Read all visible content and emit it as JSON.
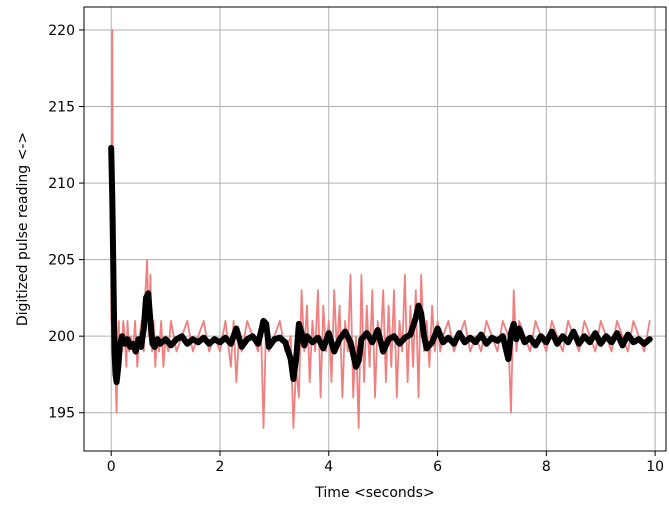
{
  "chart_data": {
    "type": "line",
    "title": "",
    "xlabel": "Time <seconds>",
    "ylabel": "Digitized pulse reading <->",
    "xlim": [
      -0.5,
      10.2
    ],
    "ylim": [
      192.5,
      221.5
    ],
    "xticks": [
      0,
      2,
      4,
      6,
      8,
      10
    ],
    "yticks": [
      195,
      200,
      205,
      210,
      215,
      220
    ],
    "xtick_labels": [
      "0",
      "2",
      "4",
      "6",
      "8",
      "10"
    ],
    "ytick_labels": [
      "195",
      "200",
      "205",
      "210",
      "215",
      "220"
    ],
    "grid": true,
    "legend": "none",
    "colors": {
      "raw": "#f08080",
      "smoothed": "#000000",
      "grid": "#b0b0b0",
      "axes": "#000000"
    },
    "series": [
      {
        "role": "raw",
        "x": [
          0.0,
          0.01,
          0.02,
          0.03,
          0.04,
          0.05,
          0.06,
          0.07,
          0.08,
          0.09,
          0.1,
          0.12,
          0.14,
          0.16,
          0.18,
          0.2,
          0.22,
          0.25,
          0.28,
          0.3,
          0.33,
          0.36,
          0.4,
          0.44,
          0.48,
          0.52,
          0.56,
          0.6,
          0.63,
          0.66,
          0.69,
          0.72,
          0.75,
          0.78,
          0.81,
          0.84,
          0.88,
          0.92,
          0.96,
          1.0,
          1.05,
          1.1,
          1.15,
          1.2,
          1.3,
          1.4,
          1.5,
          1.6,
          1.7,
          1.8,
          1.9,
          2.0,
          2.1,
          2.2,
          2.25,
          2.3,
          2.35,
          2.4,
          2.5,
          2.6,
          2.7,
          2.75,
          2.8,
          2.85,
          2.9,
          3.0,
          3.1,
          3.2,
          3.3,
          3.35,
          3.4,
          3.45,
          3.5,
          3.55,
          3.6,
          3.65,
          3.7,
          3.75,
          3.8,
          3.85,
          3.9,
          3.95,
          4.0,
          4.05,
          4.1,
          4.15,
          4.2,
          4.25,
          4.3,
          4.35,
          4.4,
          4.45,
          4.5,
          4.55,
          4.6,
          4.65,
          4.7,
          4.75,
          4.8,
          4.85,
          4.9,
          4.95,
          5.0,
          5.05,
          5.1,
          5.15,
          5.2,
          5.25,
          5.3,
          5.35,
          5.4,
          5.45,
          5.5,
          5.55,
          5.6,
          5.65,
          5.7,
          5.75,
          5.8,
          5.85,
          5.9,
          5.95,
          6.0,
          6.05,
          6.1,
          6.2,
          6.3,
          6.4,
          6.5,
          6.6,
          6.7,
          6.8,
          6.9,
          7.0,
          7.1,
          7.2,
          7.3,
          7.35,
          7.4,
          7.45,
          7.5,
          7.6,
          7.7,
          7.8,
          7.9,
          8.0,
          8.1,
          8.2,
          8.3,
          8.4,
          8.5,
          8.6,
          8.7,
          8.8,
          8.9,
          9.0,
          9.1,
          9.2,
          9.3,
          9.4,
          9.5,
          9.6,
          9.7,
          9.8,
          9.9
        ],
        "y": [
          201,
          212,
          220,
          210,
          203,
          199,
          197,
          200,
          198,
          196,
          195,
          199,
          201,
          198,
          200,
          199,
          201,
          200,
          198,
          201,
          199,
          200,
          199,
          201,
          198,
          200,
          201,
          199,
          203,
          205,
          200,
          204,
          199,
          201,
          198,
          200,
          199,
          201,
          198,
          200,
          199,
          201,
          200,
          199,
          200,
          201,
          199,
          200,
          201,
          199,
          200,
          199,
          201,
          198,
          201,
          197,
          200,
          199,
          201,
          200,
          199,
          201,
          194,
          201,
          199,
          200,
          201,
          199,
          200,
          194,
          198,
          196,
          203,
          199,
          202,
          197,
          201,
          199,
          203,
          196,
          202,
          199,
          201,
          197,
          203,
          199,
          202,
          196,
          201,
          199,
          204,
          196,
          200,
          194,
          204,
          197,
          202,
          198,
          203,
          196,
          201,
          199,
          203,
          197,
          202,
          198,
          203,
          196,
          201,
          199,
          204,
          197,
          202,
          198,
          203,
          196,
          204,
          199,
          201,
          198,
          202,
          199,
          201,
          199,
          200,
          201,
          199,
          200,
          201,
          199,
          200,
          199,
          201,
          200,
          199,
          201,
          200,
          195,
          203,
          199,
          201,
          200,
          199,
          201,
          200,
          199,
          201,
          200,
          199,
          201,
          200,
          199,
          201,
          200,
          199,
          201,
          200,
          199,
          201,
          200,
          199,
          201,
          200,
          199,
          201
        ]
      },
      {
        "role": "smoothed",
        "x": [
          0.0,
          0.02,
          0.04,
          0.06,
          0.08,
          0.1,
          0.13,
          0.16,
          0.2,
          0.25,
          0.3,
          0.35,
          0.4,
          0.45,
          0.5,
          0.55,
          0.6,
          0.64,
          0.68,
          0.72,
          0.76,
          0.8,
          0.85,
          0.9,
          1.0,
          1.1,
          1.2,
          1.3,
          1.4,
          1.5,
          1.6,
          1.7,
          1.8,
          1.9,
          2.0,
          2.1,
          2.2,
          2.3,
          2.4,
          2.5,
          2.6,
          2.7,
          2.8,
          2.85,
          2.9,
          3.0,
          3.1,
          3.2,
          3.3,
          3.35,
          3.4,
          3.45,
          3.5,
          3.55,
          3.6,
          3.7,
          3.8,
          3.9,
          4.0,
          4.1,
          4.2,
          4.3,
          4.4,
          4.5,
          4.55,
          4.6,
          4.7,
          4.8,
          4.9,
          5.0,
          5.1,
          5.2,
          5.3,
          5.4,
          5.5,
          5.6,
          5.65,
          5.7,
          5.75,
          5.8,
          5.9,
          6.0,
          6.1,
          6.2,
          6.3,
          6.4,
          6.5,
          6.6,
          6.7,
          6.8,
          6.9,
          7.0,
          7.1,
          7.2,
          7.3,
          7.35,
          7.4,
          7.45,
          7.5,
          7.6,
          7.7,
          7.8,
          7.9,
          8.0,
          8.1,
          8.2,
          8.3,
          8.4,
          8.5,
          8.6,
          8.7,
          8.8,
          8.9,
          9.0,
          9.1,
          9.2,
          9.3,
          9.4,
          9.5,
          9.6,
          9.7,
          9.8,
          9.9
        ],
        "y": [
          212.3,
          209.0,
          204.0,
          199.0,
          197.5,
          197.0,
          198.0,
          199.5,
          200.0,
          199.5,
          199.8,
          199.3,
          199.5,
          199.0,
          199.8,
          199.3,
          200.5,
          202.5,
          202.8,
          201.0,
          199.5,
          199.3,
          199.8,
          199.5,
          199.8,
          199.4,
          199.8,
          200.0,
          199.5,
          199.8,
          199.6,
          199.9,
          199.5,
          199.8,
          199.6,
          199.9,
          199.5,
          200.5,
          199.3,
          199.8,
          200.0,
          199.5,
          201.0,
          200.8,
          199.3,
          199.8,
          199.9,
          199.6,
          198.5,
          197.2,
          198.5,
          200.8,
          200.2,
          199.4,
          200.0,
          199.6,
          199.9,
          199.2,
          200.2,
          199.0,
          199.8,
          200.3,
          199.6,
          198.0,
          198.4,
          199.8,
          200.2,
          199.6,
          200.4,
          199.0,
          199.8,
          200.0,
          199.5,
          199.9,
          200.1,
          201.2,
          202.0,
          201.5,
          200.0,
          199.2,
          199.6,
          200.5,
          199.6,
          199.9,
          199.5,
          200.2,
          199.6,
          199.9,
          199.6,
          200.1,
          199.5,
          199.9,
          199.7,
          200.0,
          198.5,
          200.2,
          200.8,
          199.8,
          200.5,
          199.6,
          199.9,
          199.4,
          200.0,
          199.6,
          200.3,
          199.5,
          200.0,
          199.6,
          200.3,
          199.5,
          200.0,
          199.6,
          200.2,
          199.5,
          200.0,
          199.6,
          200.2,
          199.4,
          200.1,
          199.6,
          199.8,
          199.5,
          199.8
        ]
      }
    ]
  }
}
